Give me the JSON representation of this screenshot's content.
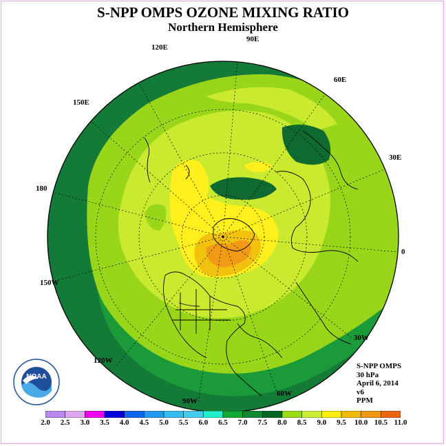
{
  "title": "S-NPP OMPS OZONE MIXING RATIO",
  "subtitle": "Northern Hemisphere",
  "longitude_labels": {
    "e120": "120E",
    "e90": "90E",
    "e60": "60E",
    "e150": "150E",
    "e30": "30E",
    "l180": "180",
    "l0": "0",
    "w150": "150W",
    "w30": "30W",
    "w120": "120W",
    "w60": "60W",
    "w90": "90W"
  },
  "info": {
    "instrument": "S-NPP OMPS",
    "level": "30 hPa",
    "date": "April 6, 2014",
    "version": "v6",
    "units": "PPM"
  },
  "logo": {
    "text": "NOAA"
  },
  "colorbar": {
    "ticks": [
      "2.0",
      "2.5",
      "3.0",
      "3.5",
      "4.0",
      "4.5",
      "5.0",
      "5.5",
      "6.0",
      "6.5",
      "7.0",
      "7.5",
      "8.0",
      "8.5",
      "9.0",
      "9.5",
      "10.0",
      "10.5",
      "11.0"
    ],
    "colors": [
      "#bb88ee",
      "#dda8f0",
      "#ee00ee",
      "#0000dd",
      "#1166ee",
      "#2299ee",
      "#33bbee",
      "#44ccee",
      "#22eecc",
      "#11aa33",
      "#118833",
      "#006622",
      "#99dd11",
      "#ccee33",
      "#ffee11",
      "#eebb00",
      "#ee9911",
      "#ee6611",
      "#ee0000",
      "#aa3322",
      "#885533"
    ]
  },
  "map_colors": {
    "dark_green": "#137a37",
    "mid_green": "#1b9a3a",
    "light_green": "#99d61a",
    "yellow_green": "#c9ea2f",
    "yellow": "#ffef1c",
    "gold": "#f1c10e",
    "orange": "#f09a16",
    "darkest_green": "#0e6a2e"
  }
}
